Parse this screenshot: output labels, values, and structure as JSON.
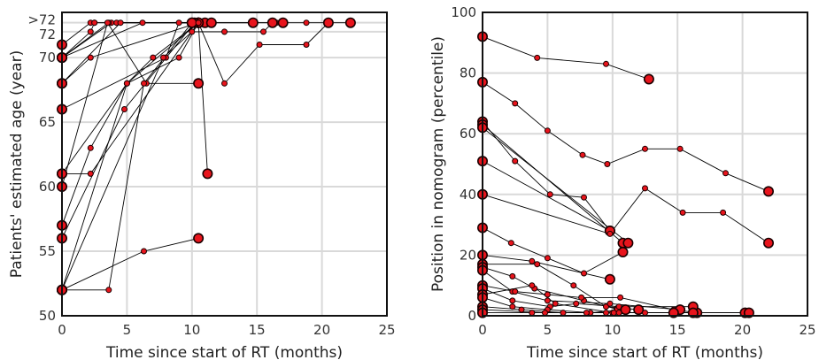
{
  "chart_data": [
    {
      "type": "scatter",
      "xlabel": "Time since start of RT (months)",
      "ylabel": "Patients' estimated age (year)",
      "xlim": [
        0,
        25
      ],
      "ylim": [
        50,
        73.5
      ],
      "xticks": [
        0,
        5,
        10,
        15,
        20,
        25
      ],
      "yticks": [
        {
          "v": 50,
          "label": "50"
        },
        {
          "v": 55,
          "label": "55"
        },
        {
          "v": 60,
          "label": "60"
        },
        {
          "v": 65,
          "label": "65"
        },
        {
          "v": 70,
          "label": "70"
        },
        {
          "v": 72,
          "label": "72"
        },
        {
          "v": 72.7,
          "label": ">72"
        }
      ],
      "grid": true,
      "legend": false,
      "marker_color": "#e8141c",
      "series": [
        {
          "x": [
            0,
            2.2,
            2.5,
            10.5
          ],
          "y": [
            71,
            72.7,
            72.7,
            72.7
          ]
        },
        {
          "x": [
            0,
            3.8,
            4.2,
            11
          ],
          "y": [
            70,
            72.7,
            72.7,
            72.7
          ]
        },
        {
          "x": [
            0,
            2.2,
            2.5,
            10.5
          ],
          "y": [
            70,
            72,
            72.7,
            72.7
          ]
        },
        {
          "x": [
            0,
            3.6,
            10.5
          ],
          "y": [
            70,
            72.7,
            72.7
          ]
        },
        {
          "x": [
            0,
            6.2,
            10
          ],
          "y": [
            70,
            72.7,
            72.7
          ]
        },
        {
          "x": [
            0,
            2.2,
            10.5
          ],
          "y": [
            68,
            70,
            72.7
          ]
        },
        {
          "x": [
            0,
            4.5,
            10.2
          ],
          "y": [
            68,
            72.7,
            72.7
          ]
        },
        {
          "x": [
            0,
            8,
            9,
            11.5
          ],
          "y": [
            66,
            70,
            72.7,
            72.7
          ]
        },
        {
          "x": [
            0,
            5,
            10.5,
            14.7
          ],
          "y": [
            61,
            68,
            72.7,
            72.7
          ]
        },
        {
          "x": [
            0,
            2.2,
            10.5,
            11.2
          ],
          "y": [
            61,
            61,
            72.7,
            61
          ]
        },
        {
          "x": [
            0,
            3.5,
            6.5,
            10.5
          ],
          "y": [
            60,
            72.7,
            68,
            68
          ]
        },
        {
          "x": [
            0,
            2.2,
            5,
            7,
            10.5,
            16.5,
            17
          ],
          "y": [
            57,
            63,
            68,
            70,
            72.7,
            72.7,
            72.7
          ]
        },
        {
          "x": [
            0,
            4.8,
            10.2,
            18.8,
            22.2
          ],
          "y": [
            56,
            66,
            72.7,
            72.7,
            72.7
          ]
        },
        {
          "x": [
            0,
            6.3,
            10.5
          ],
          "y": [
            52,
            55,
            56
          ]
        },
        {
          "x": [
            0,
            3.6,
            6.3,
            10
          ],
          "y": [
            52,
            52,
            68,
            72.7
          ]
        },
        {
          "x": [
            0,
            5,
            9,
            10.5,
            12.5,
            15.2,
            18.8,
            20.5
          ],
          "y": [
            52,
            68,
            70,
            72.7,
            68,
            71,
            71,
            72.7
          ]
        },
        {
          "x": [
            0,
            7.8,
            10,
            12.5,
            15.5,
            16.2
          ],
          "y": [
            52,
            70,
            72,
            72,
            72,
            72.7
          ]
        }
      ]
    },
    {
      "type": "scatter",
      "xlabel": "Time since start of RT (months)",
      "ylabel": "Position in nomogram (percentile)",
      "xlim": [
        0,
        25
      ],
      "ylim": [
        0,
        100
      ],
      "xticks": [
        0,
        5,
        10,
        15,
        20,
        25
      ],
      "yticks": [
        {
          "v": 0,
          "label": "0"
        },
        {
          "v": 20,
          "label": "20"
        },
        {
          "v": 40,
          "label": "40"
        },
        {
          "v": 60,
          "label": "60"
        },
        {
          "v": 80,
          "label": "80"
        },
        {
          "v": 100,
          "label": "100"
        }
      ],
      "grid": true,
      "legend": false,
      "marker_color": "#e8141c",
      "series": [
        {
          "x": [
            0,
            4.2,
            9.5,
            12.8
          ],
          "y": [
            92,
            85,
            83,
            78
          ]
        },
        {
          "x": [
            0,
            2.5,
            5,
            7.7,
            9.6,
            12.5,
            15.2,
            18.7,
            22
          ],
          "y": [
            77,
            70,
            61,
            53,
            50,
            55,
            55,
            47,
            41
          ]
        },
        {
          "x": [
            0,
            2.5,
            5.2,
            7.8,
            9.8
          ],
          "y": [
            64,
            51,
            40,
            39,
            28
          ]
        },
        {
          "x": [
            0,
            10.8
          ],
          "y": [
            63,
            24
          ]
        },
        {
          "x": [
            0,
            11.2
          ],
          "y": [
            62,
            24
          ]
        },
        {
          "x": [
            0,
            9.8
          ],
          "y": [
            51,
            28
          ]
        },
        {
          "x": [
            0,
            9.8,
            12.5,
            15.4,
            18.5,
            22
          ],
          "y": [
            40,
            27,
            42,
            34,
            34,
            24
          ]
        },
        {
          "x": [
            0,
            2.2,
            5,
            7.8,
            10.8
          ],
          "y": [
            29,
            24,
            19,
            14,
            21
          ]
        },
        {
          "x": [
            0,
            3.8,
            9.8
          ],
          "y": [
            20,
            18,
            12
          ]
        },
        {
          "x": [
            0,
            4.2,
            7,
            9.5,
            12
          ],
          "y": [
            17,
            17,
            10,
            3,
            2
          ]
        },
        {
          "x": [
            0,
            2.3,
            4,
            7.8,
            10.5
          ],
          "y": [
            16,
            13,
            9,
            5,
            2
          ]
        },
        {
          "x": [
            0,
            2.3,
            5,
            9.8,
            15.2
          ],
          "y": [
            15,
            8,
            5,
            4,
            2
          ]
        },
        {
          "x": [
            0,
            2.5,
            5,
            7.6,
            10.6,
            14.7,
            16.5
          ],
          "y": [
            10,
            8,
            7,
            6,
            6,
            2,
            1
          ]
        },
        {
          "x": [
            0,
            2.3,
            5.2,
            7.2,
            10.5,
            16.2
          ],
          "y": [
            9,
            5,
            3,
            4,
            3,
            3
          ]
        },
        {
          "x": [
            0,
            3.8,
            5.6,
            10,
            12.5,
            20.2
          ],
          "y": [
            7,
            10,
            4,
            1,
            1,
            1
          ]
        },
        {
          "x": [
            0,
            2.3,
            5,
            8.3,
            11
          ],
          "y": [
            6,
            3,
            2,
            1,
            2
          ]
        },
        {
          "x": [
            0,
            3,
            6.2,
            10.1,
            14.7
          ],
          "y": [
            3,
            2,
            1,
            1,
            1
          ]
        },
        {
          "x": [
            0,
            4.8,
            9.5,
            16.2
          ],
          "y": [
            2,
            1,
            1,
            1
          ]
        },
        {
          "x": [
            0,
            3.8,
            8,
            10.5,
            20.5
          ],
          "y": [
            1,
            1,
            1,
            1,
            1
          ]
        }
      ]
    }
  ]
}
